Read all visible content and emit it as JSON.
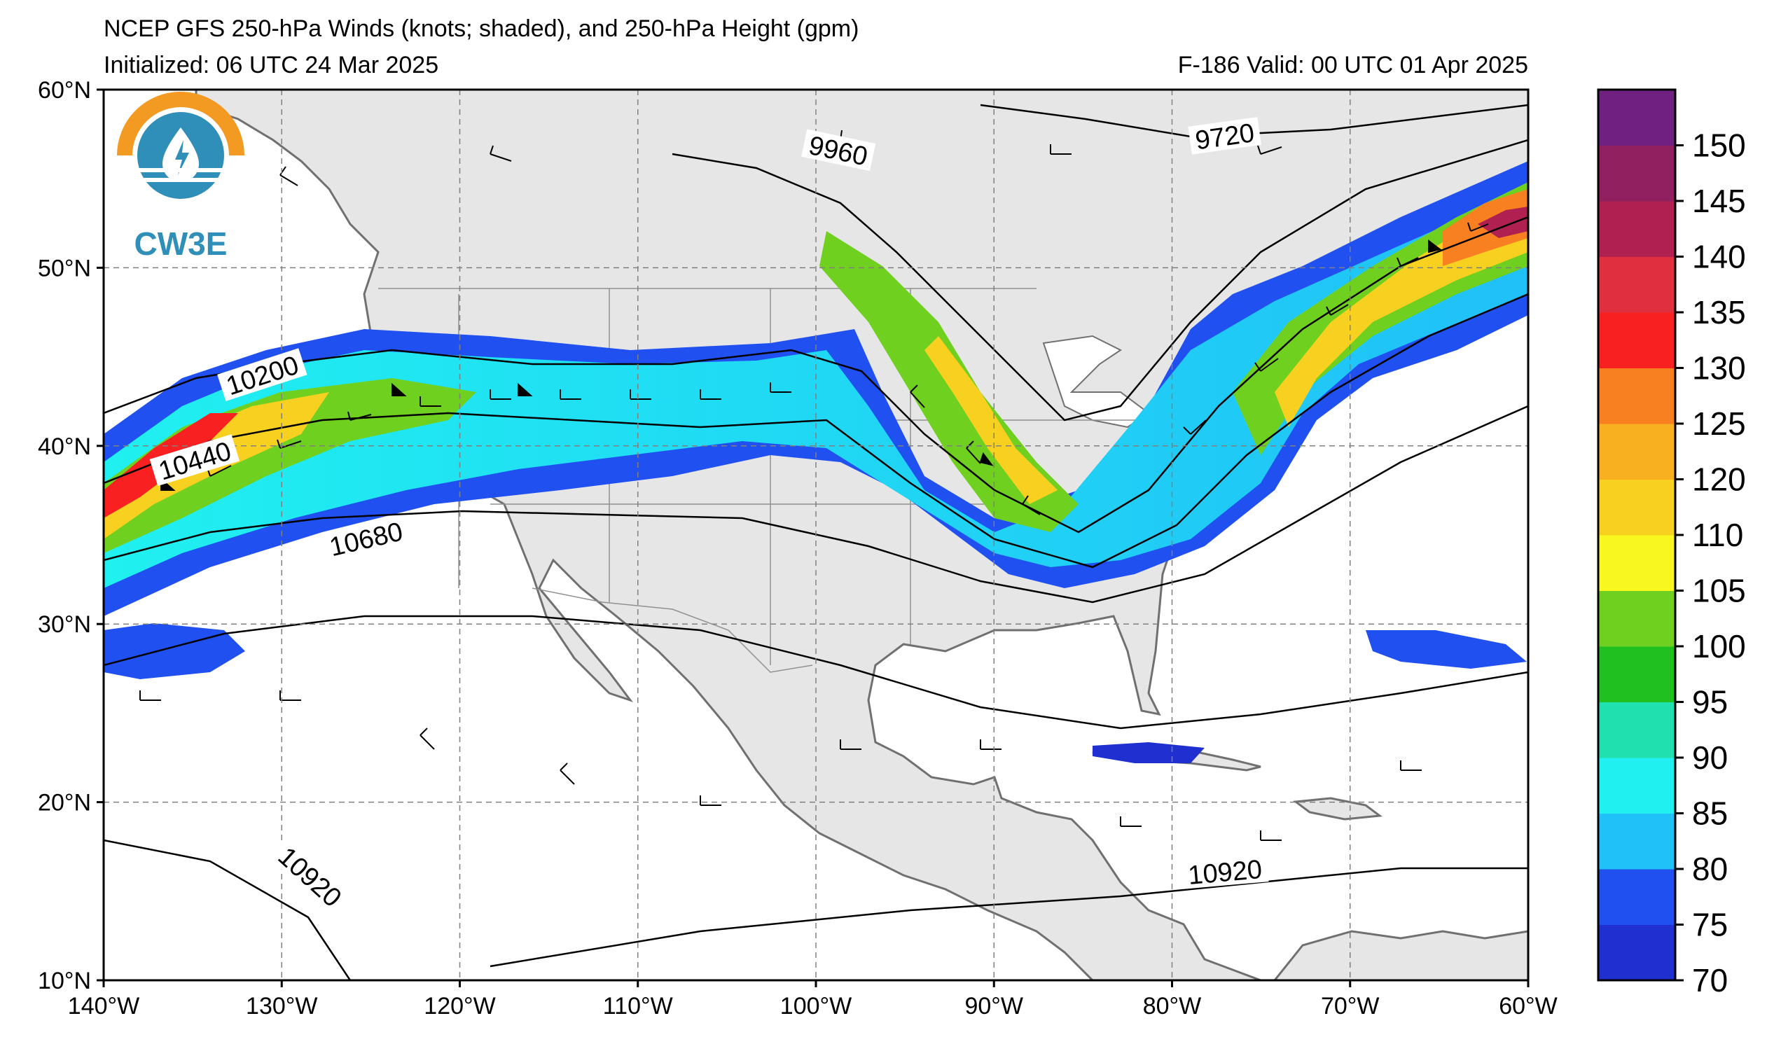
{
  "title": {
    "line1": "NCEP GFS 250-hPa Winds (knots; shaded), and 250-hPa Height (gpm)",
    "init": "Initialized: 06 UTC 24 Mar 2025",
    "valid": "F-186  Valid: 00 UTC 01 Apr 2025"
  },
  "logo": {
    "text": "CW3E",
    "icon": "water-drop-lightning-icon"
  },
  "map": {
    "lon_range": [
      -140,
      -60
    ],
    "lat_range": [
      10,
      60
    ],
    "lon_ticks": [
      {
        "value": -140,
        "label": "140°W"
      },
      {
        "value": -130,
        "label": "130°W"
      },
      {
        "value": -120,
        "label": "120°W"
      },
      {
        "value": -110,
        "label": "110°W"
      },
      {
        "value": -100,
        "label": "100°W"
      },
      {
        "value": -90,
        "label": "90°W"
      },
      {
        "value": -80,
        "label": "80°W"
      },
      {
        "value": -70,
        "label": "70°W"
      },
      {
        "value": -60,
        "label": "60°W"
      }
    ],
    "lat_ticks": [
      {
        "value": 60,
        "label": "60°N"
      },
      {
        "value": 50,
        "label": "50°N"
      },
      {
        "value": 40,
        "label": "40°N"
      },
      {
        "value": 30,
        "label": "30°N"
      },
      {
        "value": 20,
        "label": "20°N"
      },
      {
        "value": 10,
        "label": "10°N"
      }
    ],
    "grid": true,
    "ocean_color": "#ffffff",
    "land_color": "#e6e6e6",
    "coast_color": "#707070"
  },
  "colorbar": {
    "ticks": [
      "70",
      "75",
      "80",
      "85",
      "90",
      "95",
      "100",
      "105",
      "110",
      "120",
      "125",
      "130",
      "135",
      "140",
      "145",
      "150"
    ],
    "colors": [
      "#2030d0",
      "#2050f0",
      "#20c0f8",
      "#20f0f0",
      "#20e0b0",
      "#20c020",
      "#70d020",
      "#f8f820",
      "#f8d020",
      "#f8b020",
      "#f88020",
      "#f82020",
      "#e03040",
      "#b02050",
      "#902060",
      "#702080"
    ]
  },
  "contour_labels": [
    {
      "text": "9720",
      "lon": -77.0,
      "lat": 57.1,
      "angle": -8
    },
    {
      "text": "9960",
      "lon": -98.8,
      "lat": 56.3,
      "angle": 12
    },
    {
      "text": "10200",
      "lon": -131.0,
      "lat": 43.7,
      "angle": -18
    },
    {
      "text": "10440",
      "lon": -134.8,
      "lat": 38.9,
      "angle": -17
    },
    {
      "text": "10680",
      "lon": -125.2,
      "lat": 34.5,
      "angle": -13
    },
    {
      "text": "10920",
      "lon": -77.0,
      "lat": 15.8,
      "angle": -5
    },
    {
      "text": "10920",
      "lon": -128.6,
      "lat": 15.6,
      "angle": 42
    }
  ]
}
